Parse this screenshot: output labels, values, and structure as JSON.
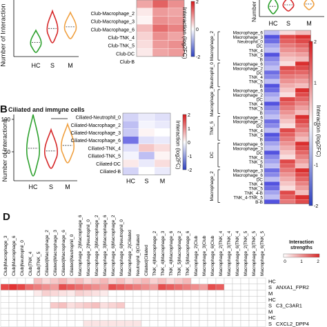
{
  "panel_labels": {
    "B": "B",
    "D": "D"
  },
  "chart_data": [
    {
      "panel": "A-violin",
      "type": "violin",
      "ylabel": "Number of Interaction",
      "categories": [
        "HC",
        "S",
        "M"
      ],
      "colors": [
        "#2ca02c",
        "#d62728",
        "#f0a040"
      ]
    },
    {
      "panel": "A-heatmap",
      "type": "heatmap",
      "rows": [
        "Club-Macrophage_2",
        "Club-Macrophage_3",
        "Club-Macrophage_6",
        "Club-TNK_4",
        "Club-TNK_5",
        "Club-DC",
        "Club-B"
      ],
      "columns": [
        "HC",
        "S",
        "M"
      ],
      "colorbar_label": "Interaction (log2FC)",
      "colorbar_ticks": [
        "2",
        "0",
        "-2"
      ]
    },
    {
      "panel": "B-violin",
      "type": "violin",
      "title": "Ciliated and immune cells",
      "ylabel": "Number of Interactions",
      "categories": [
        "HC",
        "S",
        "M"
      ],
      "yticks": [
        "100",
        "50"
      ],
      "significance": "*",
      "colors": [
        "#2ca02c",
        "#d62728",
        "#f0a040"
      ]
    },
    {
      "panel": "B-heatmap",
      "type": "heatmap",
      "rows": [
        "Ciliated-Neutrophil_0",
        "Ciliated-Macrophage_2",
        "Ciliated-Macrophage_3",
        "Ciliated-Macrophage_6",
        "Ciliated-TNK_4",
        "Ciliated-TNK_5",
        "Ciliated-DC",
        "Ciliated-B"
      ],
      "columns": [
        "HC",
        "S",
        "M"
      ],
      "colorbar_label": "Interaction (log2FC)",
      "colorbar_ticks": [
        "2",
        "1",
        "0",
        "-1",
        "-2"
      ]
    },
    {
      "panel": "C-violin",
      "type": "violin",
      "ylabel": "Number of i",
      "categories": [
        "HC",
        "S",
        "M"
      ],
      "colors": [
        "#2ca02c",
        "#d62728",
        "#f0a040"
      ]
    },
    {
      "panel": "C-heatmap",
      "type": "heatmap",
      "rows": [
        "Macrophage_6",
        "Macrophage_3",
        "Neutrophil_0",
        "DC",
        "TNK_4",
        "TNK_5",
        "B",
        "Macrophage_6",
        "Macrophage_2",
        "DC",
        "TNK_4",
        "TNK_5",
        "B",
        "Macrophage_6",
        "Macrophage_2",
        "DC",
        "TNK_4",
        "TNK_5",
        "B",
        "Macrophage_6",
        "Macrophage_2",
        "DC",
        "TNK_4",
        "TNK_5",
        "B",
        "Macrophage_6",
        "Macrophage_3",
        "DC",
        "TNK_4",
        "TNK_5",
        "B",
        "Macrophage_3",
        "Macrophage_6",
        "DC",
        "TNK_4",
        "TNK_5",
        "TNK_4-B",
        "TNK_4-TNK_5",
        "B-B"
      ],
      "group_labels": [
        "Macrophage_2",
        "Neutrophil_0",
        "Macrophage_3",
        "TNK_5",
        "DC",
        "Macrophage_2"
      ],
      "columns": [
        "HC",
        "S",
        "M"
      ],
      "colorbar_label": "Interaction (log2FC)",
      "colorbar_ticks": [
        "2",
        "1",
        "0",
        "-1",
        "-2"
      ]
    },
    {
      "panel": "D",
      "type": "heatmap",
      "legend_title": "Interaction strengths",
      "legend_ticks": [
        "0",
        "1",
        "2"
      ],
      "columns": [
        "Club|Macrophage_3",
        "Club|Macrophage_6",
        "Club|Neutrophil_0",
        "Club|TNK_4",
        "Club|TNK_5",
        "Ciliated|Macrophage_2",
        "Ciliated|Macrophage_3",
        "Ciliated|Macrophage_6",
        "Ciliated|Neutrophil_0",
        "Macrophage_2|Macrophage_6",
        "Macrophage_2|Neutrophil_0",
        "Macrophage_3|Macrophage_2",
        "Macrophage_3|Macrophage_6",
        "Macrophage_6|Macrophage_2",
        "Macrophage_6|Neutrophil_0",
        "Macrophage_2|Ciliated",
        "Neutrophil_0|Ciliated",
        "Ciliated|Ciliated",
        "TNK_4|Macrophage_2",
        "TNK_4|Macrophage_3",
        "TNK_4|Macrophage_6",
        "TNK_5|Macrophage_2",
        "TNK_5|Macrophage_6",
        "Macrophage_2|Club",
        "Macrophage_3|Club",
        "Macrophage_6|Club",
        "Macrophage_2|TNK_4",
        "Macrophage_3|TNK_4",
        "Macrophage_6|TNK_4",
        "Macrophage_2|TNK_5",
        "Macrophage_3|TNK_5",
        "Macrophage_6|TNK_5"
      ],
      "row_groups": [
        {
          "name": "ANXA1_FPR2",
          "rows": [
            "HC",
            "S",
            "M"
          ]
        },
        {
          "name": "C3_C3AR1",
          "rows": [
            "HC",
            "S",
            "M"
          ]
        },
        {
          "name": "CXCL2_DPP4",
          "rows": [
            "HC",
            "S",
            "M"
          ]
        }
      ]
    }
  ]
}
